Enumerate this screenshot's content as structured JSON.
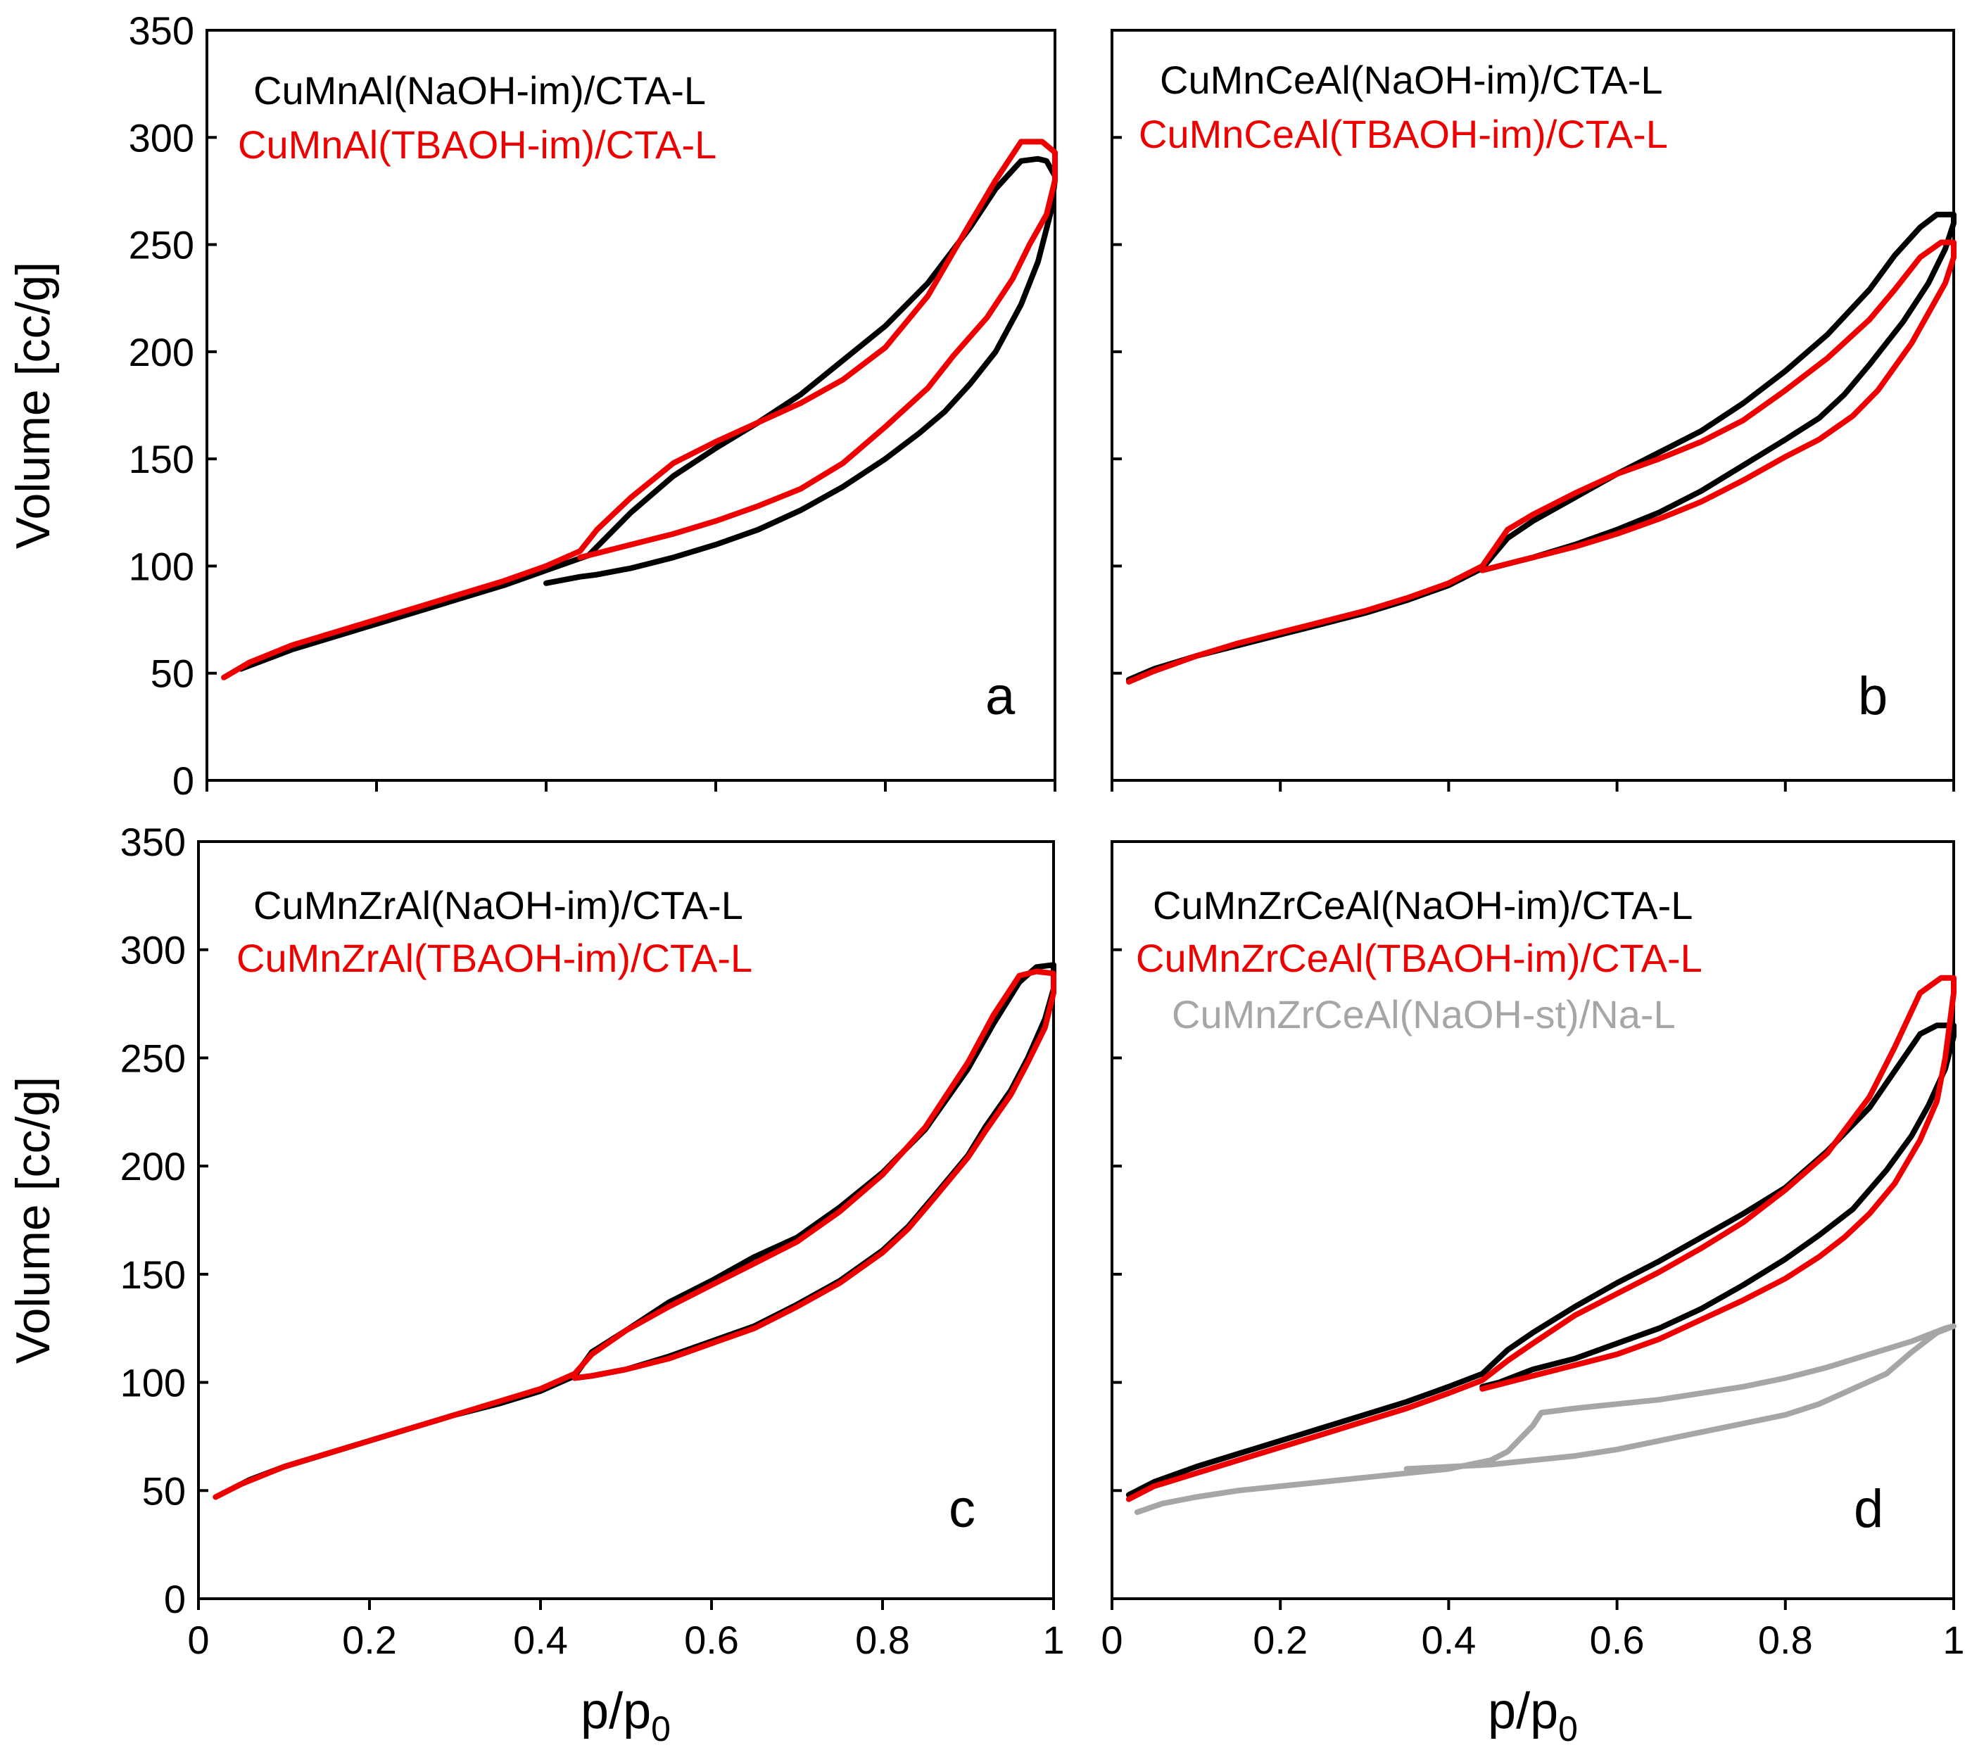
{
  "colors": {
    "naoh_im": "#000000",
    "tbaoh_im": "#ee0000",
    "naoh_st": "#a6a6a6",
    "axis": "#000000"
  },
  "chart_data": [
    {
      "type": "line",
      "panel_label": "a",
      "xlim": [
        0,
        1
      ],
      "ylim": [
        0,
        350
      ],
      "xticks": [],
      "yticks": [
        "0",
        "50",
        "100",
        "150",
        "200",
        "250",
        "300",
        "350"
      ],
      "xlabel": "",
      "ylabel": "Volume [cc/g]",
      "series": [
        {
          "name": "CuMnAl(NaOH-im)/CTA-L",
          "color_key": "naoh_im",
          "x": [
            0.04,
            0.06,
            0.1,
            0.15,
            0.2,
            0.25,
            0.3,
            0.35,
            0.4,
            0.45,
            0.5,
            0.55,
            0.6,
            0.65,
            0.7,
            0.75,
            0.8,
            0.85,
            0.9,
            0.93,
            0.96,
            0.98,
            0.99,
            1.0,
            1.0,
            0.995,
            0.98,
            0.96,
            0.93,
            0.9,
            0.87,
            0.84,
            0.8,
            0.75,
            0.7,
            0.65,
            0.6,
            0.55,
            0.5,
            0.46,
            0.44,
            0.4
          ],
          "y": [
            52,
            55,
            61,
            67,
            73,
            79,
            85,
            91,
            98,
            105,
            125,
            142,
            155,
            167,
            180,
            196,
            212,
            232,
            258,
            276,
            289,
            290,
            289,
            282,
            280,
            265,
            242,
            222,
            200,
            185,
            172,
            162,
            150,
            137,
            126,
            117,
            110,
            104,
            99,
            96,
            95,
            92
          ]
        },
        {
          "name": "CuMnAl(TBAOH-im)/CTA-L",
          "color_key": "tbaoh_im",
          "x": [
            0.02,
            0.05,
            0.1,
            0.15,
            0.2,
            0.25,
            0.3,
            0.35,
            0.4,
            0.44,
            0.46,
            0.5,
            0.55,
            0.6,
            0.65,
            0.7,
            0.75,
            0.8,
            0.85,
            0.9,
            0.93,
            0.96,
            0.985,
            1.0,
            1.0,
            0.99,
            0.97,
            0.95,
            0.92,
            0.88,
            0.85,
            0.8,
            0.75,
            0.7,
            0.65,
            0.6,
            0.55,
            0.5,
            0.46,
            0.44
          ],
          "y": [
            48,
            55,
            63,
            69,
            75,
            81,
            87,
            93,
            100,
            107,
            117,
            132,
            148,
            158,
            167,
            176,
            187,
            202,
            226,
            260,
            280,
            298,
            298,
            293,
            280,
            264,
            250,
            234,
            216,
            198,
            183,
            165,
            148,
            136,
            128,
            121,
            115,
            110,
            106,
            104
          ]
        }
      ]
    },
    {
      "type": "line",
      "panel_label": "b",
      "xlim": [
        0,
        1
      ],
      "ylim": [
        0,
        350
      ],
      "xticks": [],
      "yticks": [],
      "xlabel": "",
      "ylabel": "",
      "series": [
        {
          "name": "CuMnCeAl(NaOH-im)/CTA-L",
          "color_key": "naoh_im",
          "x": [
            0.02,
            0.05,
            0.1,
            0.15,
            0.2,
            0.25,
            0.3,
            0.35,
            0.4,
            0.44,
            0.47,
            0.5,
            0.55,
            0.6,
            0.65,
            0.7,
            0.75,
            0.8,
            0.85,
            0.9,
            0.93,
            0.96,
            0.98,
            1.0,
            1.0,
            0.99,
            0.97,
            0.94,
            0.9,
            0.87,
            0.84,
            0.8,
            0.75,
            0.7,
            0.65,
            0.6,
            0.55,
            0.5,
            0.46,
            0.44
          ],
          "y": [
            47,
            52,
            58,
            63,
            68,
            73,
            78,
            84,
            91,
            99,
            113,
            121,
            132,
            143,
            153,
            163,
            176,
            191,
            208,
            229,
            245,
            258,
            264,
            264,
            260,
            248,
            232,
            214,
            194,
            180,
            169,
            159,
            147,
            135,
            125,
            117,
            110,
            104,
            100,
            98
          ]
        },
        {
          "name": "CuMnCeAl(TBAOH-im)/CTA-L",
          "color_key": "tbaoh_im",
          "x": [
            0.02,
            0.05,
            0.1,
            0.15,
            0.2,
            0.25,
            0.3,
            0.35,
            0.4,
            0.44,
            0.47,
            0.5,
            0.55,
            0.6,
            0.65,
            0.7,
            0.75,
            0.8,
            0.85,
            0.9,
            0.93,
            0.96,
            0.985,
            1.0,
            1.0,
            0.99,
            0.97,
            0.95,
            0.91,
            0.88,
            0.84,
            0.8,
            0.75,
            0.7,
            0.65,
            0.6,
            0.55,
            0.5,
            0.46,
            0.44
          ],
          "y": [
            46,
            51,
            58,
            64,
            69,
            74,
            79,
            85,
            92,
            100,
            117,
            124,
            134,
            143,
            150,
            158,
            168,
            182,
            197,
            215,
            229,
            244,
            251,
            251,
            244,
            232,
            218,
            204,
            182,
            170,
            159,
            151,
            140,
            130,
            122,
            115,
            109,
            104,
            100,
            98
          ]
        }
      ]
    },
    {
      "type": "line",
      "panel_label": "c",
      "xlim": [
        0,
        1
      ],
      "ylim": [
        0,
        350
      ],
      "xticks": [
        "0",
        "0.2",
        "0.4",
        "0.6",
        "0.8",
        "1"
      ],
      "yticks": [
        "0",
        "50",
        "100",
        "150",
        "200",
        "250",
        "300",
        "350"
      ],
      "xlabel": "p/p0",
      "ylabel": "Volume [cc/g]",
      "series": [
        {
          "name": "CuMnZrAl(NaOH-im)/CTA-L",
          "color_key": "naoh_im",
          "x": [
            0.04,
            0.06,
            0.1,
            0.15,
            0.2,
            0.25,
            0.3,
            0.35,
            0.4,
            0.44,
            0.46,
            0.5,
            0.55,
            0.6,
            0.65,
            0.7,
            0.75,
            0.8,
            0.85,
            0.9,
            0.93,
            0.96,
            0.98,
            1.0,
            1.0,
            0.99,
            0.97,
            0.95,
            0.92,
            0.9,
            0.86,
            0.83,
            0.8,
            0.75,
            0.7,
            0.65,
            0.6,
            0.55,
            0.5,
            0.46,
            0.44
          ],
          "y": [
            51,
            55,
            61,
            67,
            73,
            79,
            85,
            90,
            96,
            103,
            114,
            124,
            137,
            147,
            158,
            167,
            181,
            197,
            217,
            245,
            266,
            285,
            292,
            293,
            282,
            268,
            250,
            235,
            218,
            205,
            186,
            172,
            161,
            147,
            136,
            126,
            119,
            112,
            106,
            103,
            102
          ]
        },
        {
          "name": "CuMnZrAl(TBAOH-im)/CTA-L",
          "color_key": "tbaoh_im",
          "x": [
            0.02,
            0.05,
            0.1,
            0.15,
            0.2,
            0.25,
            0.3,
            0.35,
            0.4,
            0.44,
            0.46,
            0.5,
            0.55,
            0.6,
            0.65,
            0.7,
            0.75,
            0.8,
            0.85,
            0.9,
            0.93,
            0.96,
            0.98,
            1.0,
            1.0,
            0.99,
            0.97,
            0.95,
            0.92,
            0.9,
            0.86,
            0.83,
            0.8,
            0.75,
            0.7,
            0.65,
            0.6,
            0.55,
            0.5,
            0.46,
            0.44
          ],
          "y": [
            47,
            53,
            61,
            67,
            73,
            79,
            85,
            91,
            97,
            104,
            113,
            124,
            135,
            145,
            155,
            165,
            179,
            196,
            218,
            248,
            270,
            288,
            290,
            289,
            280,
            264,
            248,
            233,
            216,
            204,
            185,
            171,
            160,
            146,
            135,
            125,
            118,
            111,
            106,
            103,
            102
          ]
        }
      ]
    },
    {
      "type": "line",
      "panel_label": "d",
      "xlim": [
        0,
        1
      ],
      "ylim": [
        0,
        350
      ],
      "xticks": [
        "0",
        "0.2",
        "0.4",
        "0.6",
        "0.8",
        "1"
      ],
      "yticks": [],
      "xlabel": "p/p0",
      "ylabel": "",
      "series": [
        {
          "name": "CuMnZrCeAl(NaOH-im)/CTA-L",
          "color_key": "naoh_im",
          "x": [
            0.02,
            0.05,
            0.1,
            0.15,
            0.2,
            0.25,
            0.3,
            0.35,
            0.4,
            0.44,
            0.47,
            0.5,
            0.55,
            0.6,
            0.65,
            0.7,
            0.75,
            0.8,
            0.85,
            0.9,
            0.93,
            0.96,
            0.98,
            1.0,
            1.0,
            0.99,
            0.97,
            0.95,
            0.92,
            0.88,
            0.84,
            0.8,
            0.75,
            0.7,
            0.65,
            0.6,
            0.55,
            0.5,
            0.46,
            0.44
          ],
          "y": [
            48,
            54,
            61,
            67,
            73,
            79,
            85,
            91,
            98,
            104,
            115,
            123,
            135,
            146,
            156,
            167,
            178,
            190,
            207,
            227,
            244,
            261,
            265,
            265,
            260,
            245,
            228,
            214,
            198,
            180,
            168,
            157,
            145,
            134,
            125,
            118,
            111,
            106,
            100,
            98
          ]
        },
        {
          "name": "CuMnZrCeAl(TBAOH-im)/CTA-L",
          "color_key": "tbaoh_im",
          "x": [
            0.02,
            0.05,
            0.1,
            0.15,
            0.2,
            0.25,
            0.3,
            0.35,
            0.4,
            0.44,
            0.47,
            0.5,
            0.55,
            0.6,
            0.65,
            0.7,
            0.75,
            0.8,
            0.85,
            0.9,
            0.93,
            0.96,
            0.985,
            1.0,
            1.0,
            0.99,
            0.98,
            0.96,
            0.93,
            0.9,
            0.87,
            0.84,
            0.8,
            0.75,
            0.7,
            0.65,
            0.6,
            0.55,
            0.5,
            0.46,
            0.44
          ],
          "y": [
            46,
            52,
            58,
            64,
            70,
            76,
            82,
            88,
            95,
            101,
            110,
            118,
            131,
            141,
            151,
            162,
            174,
            189,
            206,
            232,
            255,
            280,
            287,
            287,
            280,
            250,
            230,
            212,
            192,
            178,
            167,
            158,
            148,
            138,
            129,
            120,
            113,
            108,
            103,
            99,
            97
          ]
        },
        {
          "name": "CuMnZrCeAl(NaOH-st)/Na-L",
          "color_key": "naoh_st",
          "x": [
            0.03,
            0.06,
            0.1,
            0.15,
            0.2,
            0.25,
            0.3,
            0.35,
            0.4,
            0.45,
            0.47,
            0.48,
            0.5,
            0.51,
            0.55,
            0.6,
            0.65,
            0.7,
            0.75,
            0.8,
            0.85,
            0.9,
            0.95,
            0.99,
            1.0,
            0.98,
            0.95,
            0.92,
            0.88,
            0.84,
            0.8,
            0.75,
            0.7,
            0.65,
            0.6,
            0.55,
            0.5,
            0.45,
            0.4,
            0.35
          ],
          "y": [
            40,
            44,
            47,
            50,
            52,
            54,
            56,
            58,
            60,
            64,
            68,
            72,
            80,
            86,
            88,
            90,
            92,
            95,
            98,
            102,
            107,
            113,
            119,
            125,
            126,
            123,
            114,
            104,
            97,
            90,
            85,
            81,
            77,
            73,
            69,
            66,
            64,
            62,
            61,
            60
          ]
        }
      ]
    }
  ]
}
